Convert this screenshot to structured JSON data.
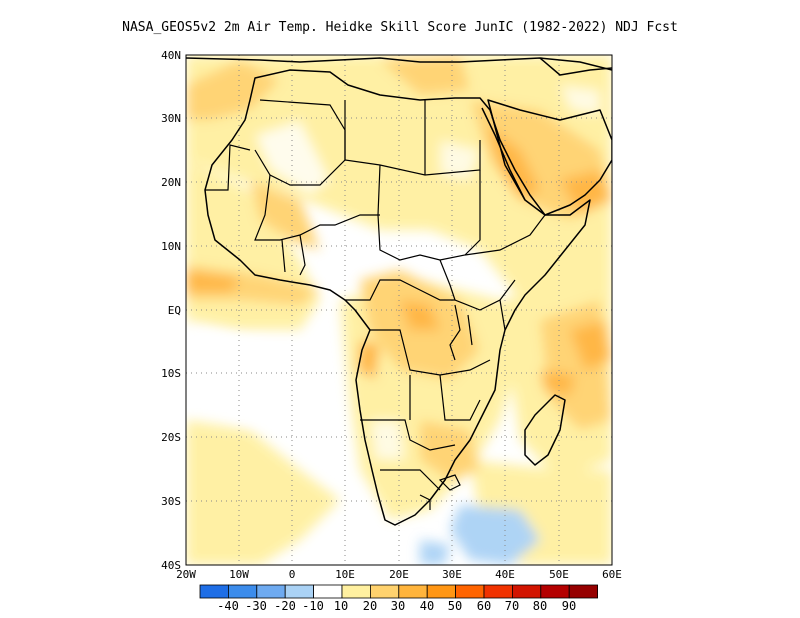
{
  "title": "NASA_GEOS5v2  2m Air Temp. Heidke Skill Score JunIC (1982-2022) NDJ Fcst",
  "map": {
    "lat_labels": [
      "40N",
      "30N",
      "20N",
      "10N",
      "EQ",
      "10S",
      "20S",
      "30S",
      "40S"
    ],
    "lon_labels": [
      "20W",
      "10W",
      "0",
      "10E",
      "20E",
      "30E",
      "40E",
      "50E",
      "60E"
    ],
    "grid": "dotted"
  },
  "colorbar": {
    "labels": [
      "-40",
      "-30",
      "-20",
      "-10",
      "10",
      "20",
      "30",
      "40",
      "50",
      "60",
      "70",
      "80",
      "90"
    ],
    "colors": [
      "#1e6ee6",
      "#3c8ceb",
      "#6eaaf0",
      "#aad2f5",
      "#ffffff",
      "#fff0a0",
      "#ffd26e",
      "#ffb43c",
      "#ff9614",
      "#ff6400",
      "#f03200",
      "#d21400",
      "#b40000",
      "#960000"
    ]
  }
}
